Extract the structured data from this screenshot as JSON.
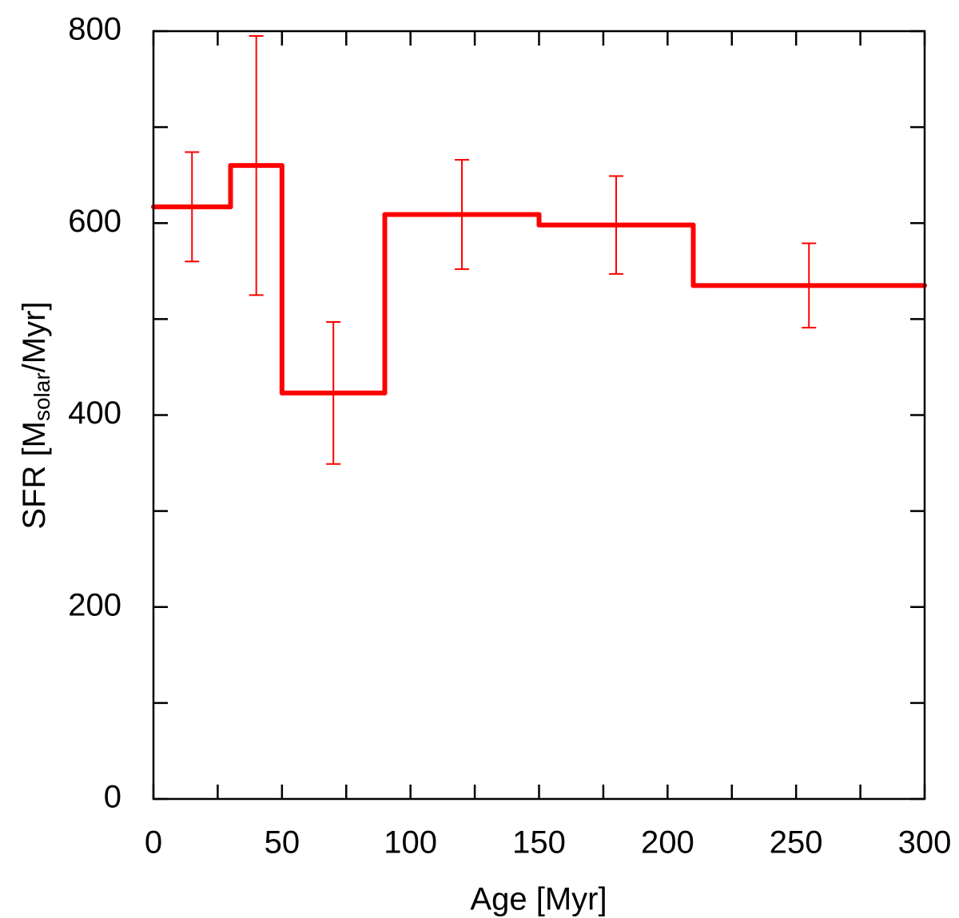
{
  "chart_data": {
    "type": "histogram",
    "xlabel": "Age [Myr]",
    "ylabel": {
      "main": "SFR [M",
      "sub": "solar",
      "tail": "/Myr]"
    },
    "bins": [
      0,
      30,
      50,
      90,
      150,
      210,
      300
    ],
    "values": [
      617,
      660,
      423,
      609,
      598,
      535
    ],
    "errors": [
      57,
      135,
      74,
      57,
      51,
      44
    ],
    "color": "#ff0000",
    "xlim": [
      0,
      300
    ],
    "xticks": [
      0,
      50,
      100,
      150,
      200,
      250,
      300
    ],
    "xminorticks": [
      25,
      75,
      125,
      175,
      225,
      275
    ],
    "ylim": [
      0,
      800
    ],
    "yticks": [
      0,
      200,
      400,
      600,
      800
    ],
    "yminorticks": [
      100,
      300,
      500,
      700
    ]
  }
}
